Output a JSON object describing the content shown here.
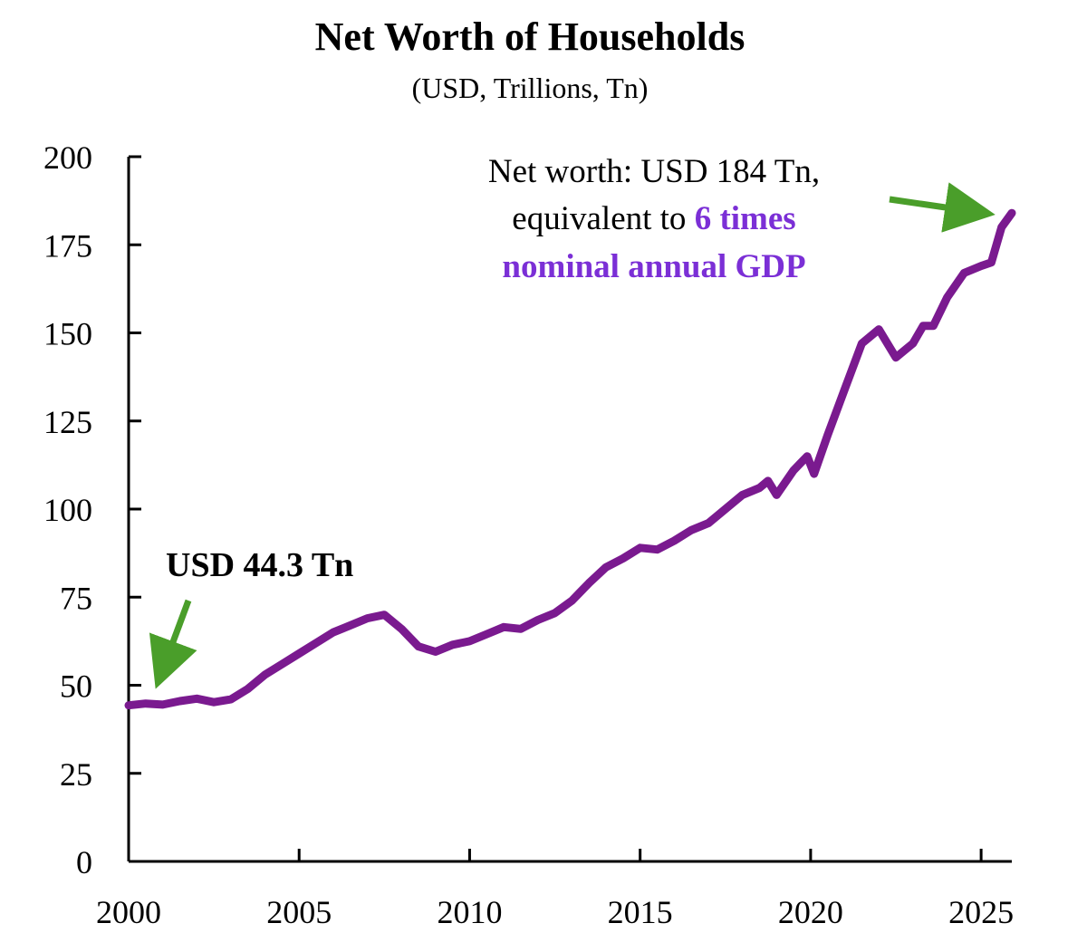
{
  "colors": {
    "line": "#7a1a8f",
    "arrow": "#4a9e2a",
    "highlight": "#7b2fd6",
    "axis": "#000000"
  },
  "chart_data": {
    "type": "line",
    "title": "Net Worth of Households",
    "subtitle": "(USD, Trillions, Tn)",
    "xlim": [
      2000,
      2025.9
    ],
    "ylim": [
      0,
      200
    ],
    "x_ticks": [
      "2000",
      "2005",
      "2010",
      "2015",
      "2020",
      "2025"
    ],
    "x_tick_values": [
      2000,
      2005,
      2010,
      2015,
      2020,
      2025
    ],
    "y_ticks": [
      "0",
      "25",
      "50",
      "75",
      "100",
      "125",
      "150",
      "175",
      "200"
    ],
    "y_tick_values": [
      0,
      25,
      50,
      75,
      100,
      125,
      150,
      175,
      200
    ],
    "grid": false,
    "series": [
      {
        "x": [
          2000,
          2000.5,
          2001,
          2001.5,
          2002,
          2002.5,
          2003,
          2003.5,
          2004,
          2004.5,
          2005,
          2005.5,
          2006,
          2006.5,
          2007,
          2007.5,
          2008,
          2008.5,
          2009,
          2009.5,
          2010,
          2010.5,
          2011,
          2011.5,
          2012,
          2012.5,
          2013,
          2013.5,
          2014,
          2014.5,
          2015,
          2015.5,
          2016,
          2016.5,
          2017,
          2017.5,
          2018,
          2018.5,
          2018.75,
          2019,
          2019.5,
          2019.9,
          2020.1,
          2020.5,
          2021,
          2021.5,
          2022,
          2022.5,
          2023,
          2023.3,
          2023.6,
          2024,
          2024.5,
          2025,
          2025.3,
          2025.6,
          2025.9
        ],
        "y": [
          44.3,
          44.8,
          44.5,
          45.5,
          46.2,
          45.2,
          46.0,
          49.0,
          53.0,
          56.0,
          59.0,
          62.0,
          65.0,
          67.0,
          69.0,
          70.0,
          66.0,
          61.0,
          59.5,
          61.5,
          62.5,
          64.5,
          66.5,
          66.0,
          68.5,
          70.5,
          74.0,
          79.0,
          83.5,
          86.0,
          89.0,
          88.5,
          91.0,
          94.0,
          96.0,
          100.0,
          104.0,
          106.0,
          108.0,
          104.0,
          111.0,
          115.0,
          110.0,
          121.0,
          134.0,
          147.0,
          151.0,
          143.0,
          147.0,
          152.0,
          152.0,
          160.0,
          167.0,
          169.0,
          170.0,
          180.0,
          184.0
        ]
      }
    ],
    "annotations": {
      "start_label": "USD 44.3 Tn",
      "end_line1": "Net worth: USD 184 Tn,",
      "end_line2_plain": "equivalent to ",
      "end_line2_highlight": "6 times",
      "end_line3_highlight": "nominal annual GDP"
    }
  }
}
